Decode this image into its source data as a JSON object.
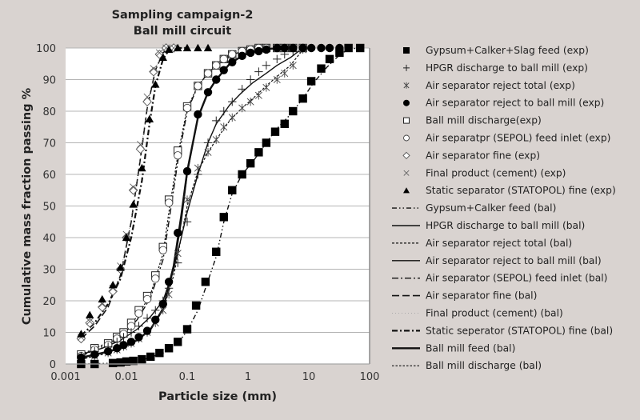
{
  "chart_data": {
    "type": "scatter",
    "title": "Sampling campaign-2",
    "subtitle": "Ball mill circuit",
    "xlabel": "Particle size (mm)",
    "ylabel": "Cumulative mass fraction passing %",
    "xscale": "log",
    "xlim": [
      0.001,
      100
    ],
    "ylim": [
      0,
      100
    ],
    "xticks": [
      0.001,
      0.01,
      0.1,
      1,
      10,
      100
    ],
    "xtick_labels": [
      "0.001",
      "0.01",
      "0.1",
      "1",
      "10",
      "100"
    ],
    "yticks": [
      0,
      10,
      20,
      30,
      40,
      50,
      60,
      70,
      80,
      90,
      100
    ],
    "ytick_labels": [
      "0",
      "10",
      "20",
      "30",
      "40",
      "50",
      "60",
      "70",
      "80",
      "90",
      "100"
    ],
    "grid": "horizontal",
    "legend_position": "right",
    "experimental_series": [
      {
        "name": "Gypsum+Calker+Slag feed (exp)",
        "marker": "filled-square",
        "x": [
          0.0018,
          0.003,
          0.006,
          0.008,
          0.01,
          0.013,
          0.018,
          0.025,
          0.035,
          0.05,
          0.07,
          0.1,
          0.14,
          0.2,
          0.3,
          0.4,
          0.55,
          0.8,
          1.1,
          1.5,
          2,
          2.8,
          4,
          5.5,
          8,
          11,
          16,
          22,
          32,
          45,
          70
        ],
        "y": [
          0,
          0,
          0.3,
          0.5,
          0.8,
          1,
          1.5,
          2.3,
          3.5,
          5,
          7,
          11,
          18.5,
          26,
          35.5,
          46.5,
          55,
          60,
          63.5,
          67,
          70,
          73.5,
          76,
          80,
          84,
          89.5,
          93.5,
          96.5,
          98.5,
          100,
          100
        ]
      },
      {
        "name": "HPGR discharge to ball mill (exp)",
        "marker": "plus",
        "x": [
          0.0018,
          0.003,
          0.005,
          0.007,
          0.009,
          0.012,
          0.016,
          0.022,
          0.03,
          0.04,
          0.05,
          0.07,
          0.1,
          0.15,
          0.22,
          0.3,
          0.4,
          0.55,
          0.8,
          1.1,
          1.5,
          2,
          3,
          4,
          5.5,
          8
        ],
        "y": [
          2.5,
          4,
          5.5,
          7,
          8.5,
          10,
          12,
          14.5,
          17,
          20,
          24,
          32,
          45,
          60,
          70,
          77,
          80,
          83,
          87,
          90,
          92.5,
          94.5,
          96.5,
          98,
          99,
          100
        ]
      },
      {
        "name": "Air separator reject total (exp)",
        "marker": "asterisk",
        "x": [
          0.0018,
          0.003,
          0.005,
          0.007,
          0.009,
          0.012,
          0.016,
          0.022,
          0.03,
          0.04,
          0.05,
          0.07,
          0.1,
          0.15,
          0.22,
          0.3,
          0.4,
          0.55,
          0.8,
          1.1,
          1.5,
          2,
          3,
          4,
          5.5,
          8
        ],
        "y": [
          1.5,
          2.5,
          3.5,
          4.5,
          5.5,
          6.5,
          8,
          10,
          13,
          17,
          22,
          35,
          52,
          62,
          67,
          71,
          75,
          78,
          81,
          83,
          85,
          87.5,
          90,
          92,
          94.5,
          99.5
        ]
      },
      {
        "name": "Air separator reject to ball mill (exp)",
        "marker": "filled-circle",
        "x": [
          0.0018,
          0.003,
          0.005,
          0.007,
          0.009,
          0.012,
          0.016,
          0.022,
          0.03,
          0.04,
          0.05,
          0.07,
          0.1,
          0.15,
          0.22,
          0.3,
          0.4,
          0.55,
          0.8,
          1.1,
          1.5,
          2,
          3,
          4,
          5.5,
          8,
          11,
          16,
          22,
          32
        ],
        "y": [
          2,
          3,
          4,
          5,
          6,
          7,
          8.5,
          10.5,
          14,
          19,
          26,
          41.5,
          61,
          79,
          86,
          90,
          93,
          95.5,
          97.5,
          98.5,
          99,
          99.5,
          100,
          100,
          100,
          100,
          100,
          100,
          100,
          100
        ]
      },
      {
        "name": "Ball mill discharge(exp)",
        "marker": "open-square",
        "x": [
          0.0018,
          0.003,
          0.005,
          0.007,
          0.009,
          0.012,
          0.016,
          0.022,
          0.03,
          0.04,
          0.05,
          0.07,
          0.1,
          0.15,
          0.22,
          0.3,
          0.4,
          0.55,
          0.8,
          1.1,
          1.5,
          2,
          3,
          4,
          5.5,
          8
        ],
        "y": [
          3,
          5,
          6.5,
          8.5,
          10,
          13,
          17,
          21.5,
          28,
          37,
          52,
          67.5,
          81.5,
          88,
          92,
          94.5,
          96.5,
          98,
          99,
          99.5,
          100,
          100,
          100,
          100,
          100,
          100
        ]
      },
      {
        "name": "Air separatpr (SEPOL) feed inlet (exp)",
        "marker": "open-circle",
        "x": [
          0.0018,
          0.003,
          0.005,
          0.007,
          0.009,
          0.012,
          0.016,
          0.022,
          0.03,
          0.04,
          0.05,
          0.07,
          0.1,
          0.15,
          0.22,
          0.3,
          0.4,
          0.55,
          0.8,
          1.1,
          1.5,
          2
        ],
        "y": [
          2.5,
          4.5,
          6,
          8,
          9.5,
          12,
          16,
          20.5,
          27,
          36,
          51,
          66,
          81,
          88,
          92,
          94.5,
          96.5,
          98,
          99,
          99.5,
          100,
          100
        ]
      },
      {
        "name": "Air separator fine (exp)",
        "marker": "open-diamond",
        "x": [
          0.0018,
          0.0025,
          0.004,
          0.006,
          0.008,
          0.01,
          0.013,
          0.017,
          0.022,
          0.028,
          0.035,
          0.045,
          0.06
        ],
        "y": [
          8,
          13,
          18,
          23,
          30,
          40,
          55,
          68,
          83,
          92.5,
          98,
          100,
          100
        ]
      },
      {
        "name": "Final product (cement) (exp)",
        "marker": "x",
        "x": [
          0.0018,
          0.0025,
          0.004,
          0.006,
          0.008,
          0.01,
          0.013,
          0.017,
          0.022,
          0.028,
          0.035,
          0.045,
          0.06
        ],
        "y": [
          8.5,
          13.5,
          19,
          24,
          31,
          41,
          56,
          69.5,
          84.5,
          93.5,
          98.5,
          100,
          100
        ]
      },
      {
        "name": "Static separator (STATOPOL) fine (exp)",
        "marker": "filled-triangle",
        "x": [
          0.0018,
          0.0025,
          0.004,
          0.006,
          0.008,
          0.01,
          0.013,
          0.018,
          0.024,
          0.03,
          0.04,
          0.05,
          0.07,
          0.1,
          0.15,
          0.22
        ],
        "y": [
          9.5,
          15.5,
          20.5,
          25,
          30.5,
          40,
          50.5,
          62,
          77.5,
          88.5,
          97,
          99.5,
          100,
          100,
          100,
          100
        ]
      }
    ],
    "balanced_series": [
      {
        "name": "Gypsum+Calker feed (bal)",
        "linestyle": "dash-dot-dot",
        "x": [
          0.0018,
          0.005,
          0.01,
          0.02,
          0.04,
          0.07,
          0.1,
          0.15,
          0.2,
          0.3,
          0.4,
          0.55,
          0.8,
          1.2,
          2,
          3,
          5,
          8,
          12,
          20,
          35,
          60
        ],
        "y": [
          0,
          0.2,
          0.6,
          1.5,
          3.5,
          6.5,
          10.5,
          17,
          24,
          34,
          45,
          54,
          60,
          64,
          70,
          74.5,
          79,
          84,
          89,
          94,
          98.5,
          100
        ]
      },
      {
        "name": "HPGR discharge to ball mill (bal)",
        "linestyle": "solid",
        "x": [
          0.0018,
          0.004,
          0.008,
          0.015,
          0.025,
          0.04,
          0.06,
          0.08,
          0.1,
          0.15,
          0.22,
          0.3,
          0.5,
          0.8,
          1.2,
          2,
          3,
          5,
          8
        ],
        "y": [
          3,
          5,
          7.5,
          11,
          15,
          20,
          30,
          40,
          48,
          60,
          70,
          76,
          82,
          86,
          89,
          92,
          94.5,
          97,
          100
        ]
      },
      {
        "name": "Air separator reject total (bal)",
        "linestyle": "dashed",
        "x": [
          0.0018,
          0.004,
          0.008,
          0.015,
          0.025,
          0.04,
          0.06,
          0.08,
          0.1,
          0.15,
          0.22,
          0.3,
          0.5,
          0.8,
          1.2,
          2,
          3,
          5,
          8
        ],
        "y": [
          1.5,
          3,
          5,
          7.5,
          11,
          17,
          28,
          40,
          50,
          61,
          67,
          71,
          77,
          81,
          84,
          88,
          91,
          94.5,
          99.5
        ]
      },
      {
        "name": "Air separator reject to ball mill (bal)",
        "linestyle": "solid",
        "x": [
          0.0018,
          0.004,
          0.008,
          0.015,
          0.025,
          0.04,
          0.06,
          0.08,
          0.1,
          0.15,
          0.22,
          0.3,
          0.5,
          0.8,
          1.2,
          2,
          4
        ],
        "y": [
          2,
          3.5,
          5,
          7.5,
          11,
          17.5,
          30,
          45,
          60,
          78,
          86,
          90,
          95,
          97.5,
          98.8,
          99.7,
          100
        ]
      },
      {
        "name": "Air separator (SEPOL) feed inlet (bal)",
        "linestyle": "long-dash-dot",
        "x": [
          0.0018,
          0.004,
          0.008,
          0.015,
          0.025,
          0.04,
          0.05,
          0.07,
          0.1,
          0.15,
          0.22,
          0.3,
          0.5,
          0.8,
          1.2,
          2
        ],
        "y": [
          2.5,
          5.5,
          8.5,
          14,
          21,
          33,
          45,
          64,
          80,
          88,
          92,
          94.5,
          97.5,
          99,
          99.7,
          100
        ]
      },
      {
        "name": "Air separator fine (bal)",
        "linestyle": "long-dash",
        "x": [
          0.0018,
          0.003,
          0.005,
          0.008,
          0.012,
          0.017,
          0.022,
          0.03,
          0.04,
          0.05,
          0.07
        ],
        "y": [
          8,
          12,
          18,
          28,
          45,
          65,
          81,
          93,
          98.5,
          99.8,
          100
        ]
      },
      {
        "name": "Final product (cement) (bal)",
        "linestyle": "dotted-light",
        "x": [
          0.0018,
          0.003,
          0.005,
          0.008,
          0.012,
          0.017,
          0.022,
          0.03,
          0.04,
          0.05,
          0.07
        ],
        "y": [
          8.5,
          12.5,
          18.5,
          29,
          46,
          66,
          82,
          93.5,
          98.5,
          99.8,
          100
        ]
      },
      {
        "name": "Static seperator (STATOPOL) fine (bal)",
        "linestyle": "dash-dot-bold",
        "x": [
          0.0018,
          0.003,
          0.005,
          0.008,
          0.012,
          0.018,
          0.024,
          0.03,
          0.04,
          0.05,
          0.07,
          0.1
        ],
        "y": [
          9,
          13,
          19,
          27,
          40,
          58,
          76,
          88,
          96.5,
          99.3,
          100,
          100
        ]
      },
      {
        "name": "Ball mill feed (bal)",
        "linestyle": "solid-bold",
        "x": [
          0.0018,
          0.004,
          0.008,
          0.015,
          0.025,
          0.04,
          0.06,
          0.08,
          0.1,
          0.15,
          0.22,
          0.3,
          0.5,
          0.8,
          1.2,
          2,
          4
        ],
        "y": [
          2,
          3.5,
          5,
          7.5,
          11,
          17.5,
          31,
          47,
          61,
          78,
          86,
          90,
          95,
          97.5,
          98.8,
          99.7,
          100
        ]
      },
      {
        "name": "Ball mill discharge (bal)",
        "linestyle": "short-dash",
        "x": [
          0.0018,
          0.004,
          0.008,
          0.015,
          0.025,
          0.04,
          0.05,
          0.07,
          0.1,
          0.15,
          0.22,
          0.3,
          0.5,
          0.8,
          1.2,
          2
        ],
        "y": [
          3,
          6,
          9,
          15,
          22,
          35,
          48,
          66,
          81,
          88,
          92,
          94.5,
          97.5,
          99,
          99.7,
          100
        ]
      }
    ]
  }
}
